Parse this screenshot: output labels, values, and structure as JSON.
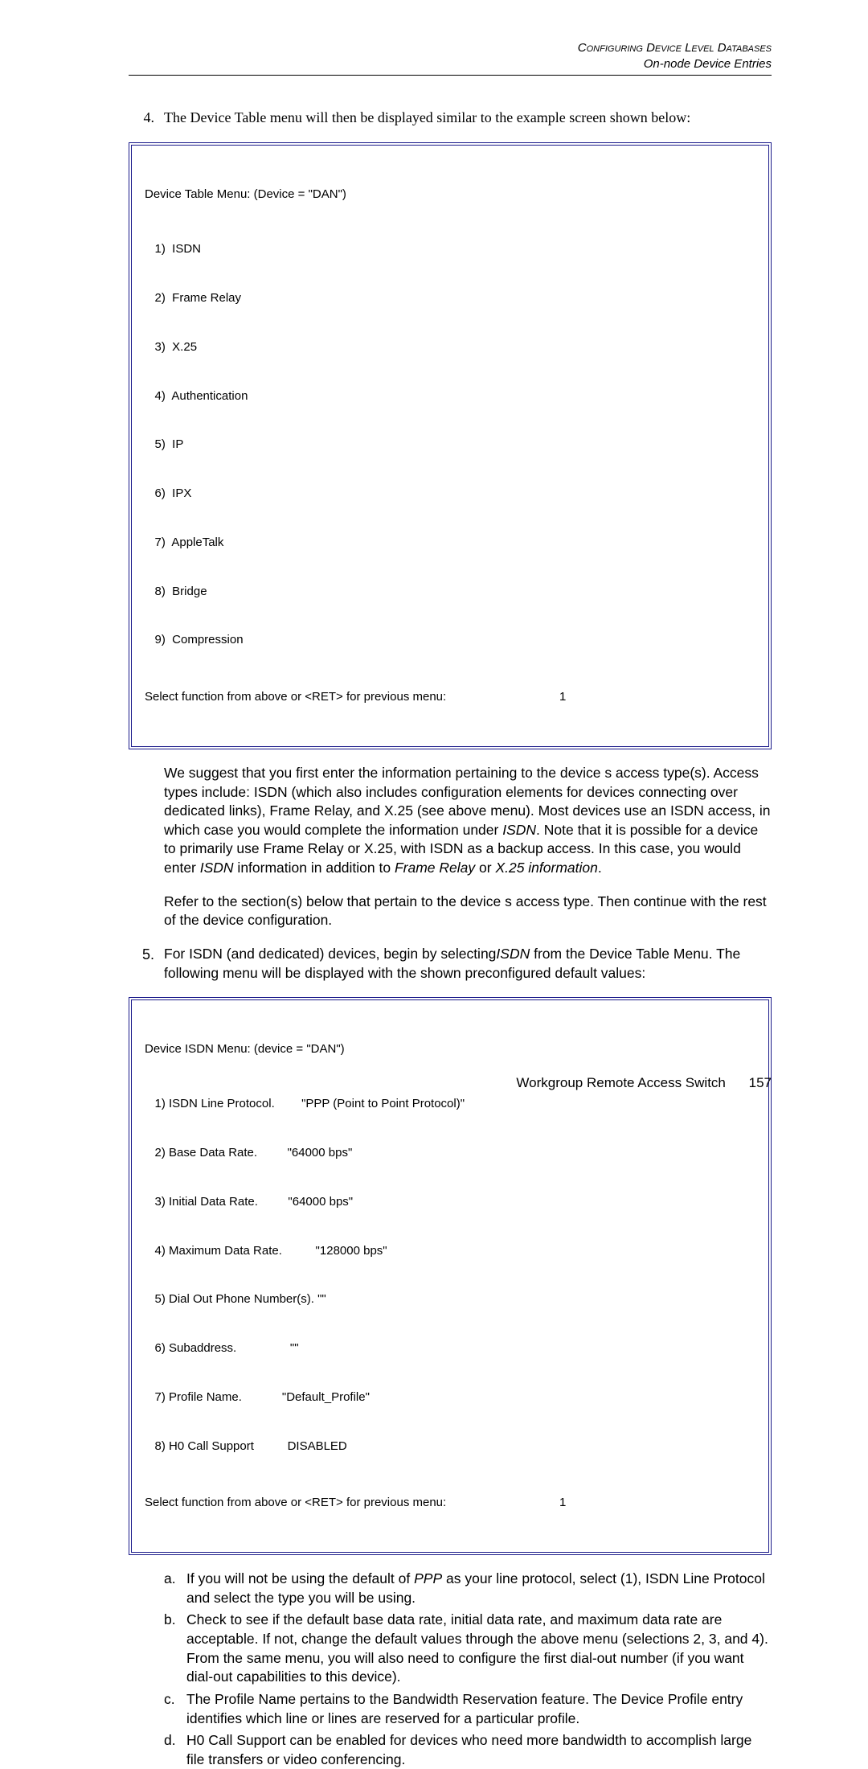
{
  "header": {
    "line1": "Configuring Device Level Databases",
    "line2": "On-node Device Entries"
  },
  "step4": {
    "num": "4.",
    "text": "The Device Table menu will then be displayed similar to the example screen shown below:"
  },
  "menu1": {
    "title": "Device Table Menu: (Device = \"DAN\")",
    "items": [
      "   1)  ISDN",
      "   2)  Frame Relay",
      "   3)  X.25",
      "   4)  Authentication",
      "   5)  IP",
      "   6)  IPX",
      "   7)  AppleTalk",
      "   8)  Bridge",
      "   9)  Compression"
    ],
    "select_prompt": "Select function from above or <RET> for previous menu:",
    "select_value": "1"
  },
  "para1_a": "We suggest that you first enter the information pertaining to the device s access type(s). Access types include: ISDN (which also includes configuration elements for devices connecting over dedicated links), Frame Relay, and X.25 (see above menu). Most devices use an ISDN access, in which case you would complete the information under ",
  "para1_isdn": " ISDN",
  "para1_b": ". Note that it is possible for a device to primarily use Frame Relay or X.25, with ISDN as a backup access. In this case, you would enter ",
  "para1_isdn2": "ISDN",
  "para1_c": " information in addition to ",
  "para1_fr": " Frame Relay",
  "para1_d": " or ",
  "para1_x25": "X.25 information",
  "para1_e": ".",
  "para2": "Refer to the section(s) below that pertain to the device s access type. Then continue with the rest of the device configuration.",
  "step5": {
    "num": "5.",
    "text_a": "For ISDN (and dedicated) devices, begin by selecting",
    "text_isdn": "ISDN",
    "text_b": " from the Device Table Menu. The following menu will be displayed with the shown preconfigured default values:"
  },
  "menu2": {
    "title": "Device ISDN Menu: (device = \"DAN\")",
    "lines": [
      "   1) ISDN Line Protocol.        \"PPP (Point to Point Protocol)\"",
      "   2) Base Data Rate.         \"64000 bps\"",
      "   3) Initial Data Rate.         \"64000 bps\"",
      "   4) Maximum Data Rate.          \"128000 bps\"",
      "   5) Dial Out Phone Number(s). \"\"",
      "   6) Subaddress.                \"\"",
      "   7) Profile Name.            \"Default_Profile\"",
      "   8) H0 Call Support          DISABLED"
    ],
    "select_prompt": "Select function from above or <RET> for previous menu:",
    "select_value": "1"
  },
  "subitems": {
    "a": {
      "letter": "a.",
      "t1": "If you will not be using the default of ",
      "ppp": " PPP",
      "t2": " as your line protocol, select (1), ISDN Line Protocol and select the type you will be using."
    },
    "b": {
      "letter": "b.",
      "text": "Check to see if the default base data rate, initial data rate, and maximum data rate are acceptable. If not, change the default values through the above menu (selections 2, 3, and 4). From the same menu, you will also need to configure the first dial-out number (if you want dial-out capabilities to this device)."
    },
    "c": {
      "letter": "c.",
      "text": "The Profile Name pertains to the Bandwidth Reservation feature. The Device Profile entry identifies which line or lines are reserved for a particular profile."
    },
    "d": {
      "letter": "d.",
      "text": "H0 Call Support can be enabled for devices who need more bandwidth to accomplish large file transfers or video conferencing."
    }
  },
  "footer": {
    "label": "Workgroup Remote Access Switch",
    "page": "157"
  }
}
